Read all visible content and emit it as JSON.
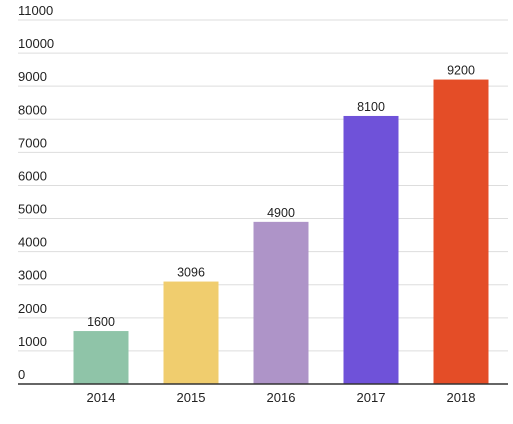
{
  "chart_data": {
    "type": "bar",
    "categories": [
      "2014",
      "2015",
      "2016",
      "2017",
      "2018"
    ],
    "values": [
      1600,
      3096,
      4900,
      8100,
      9200
    ],
    "data_labels": [
      "1600",
      "3096",
      "4900",
      "8100",
      "9200"
    ],
    "bar_colors": [
      "#8fc4a8",
      "#f0cd6e",
      "#ae94c8",
      "#6f52d9",
      "#e44d27"
    ],
    "title": "",
    "xlabel": "",
    "ylabel": "",
    "ylim": [
      0,
      11000
    ],
    "y_ticks": [
      0,
      1000,
      2000,
      3000,
      4000,
      5000,
      6000,
      7000,
      8000,
      9000,
      10000,
      11000
    ],
    "y_tick_labels": [
      "0",
      "1000",
      "2000",
      "3000",
      "4000",
      "5000",
      "6000",
      "7000",
      "8000",
      "9000",
      "10000",
      "11000"
    ],
    "grid": true,
    "legend": "none"
  },
  "colors": {
    "grid": "#dddddd",
    "axis": "#333333",
    "text": "#222222"
  }
}
